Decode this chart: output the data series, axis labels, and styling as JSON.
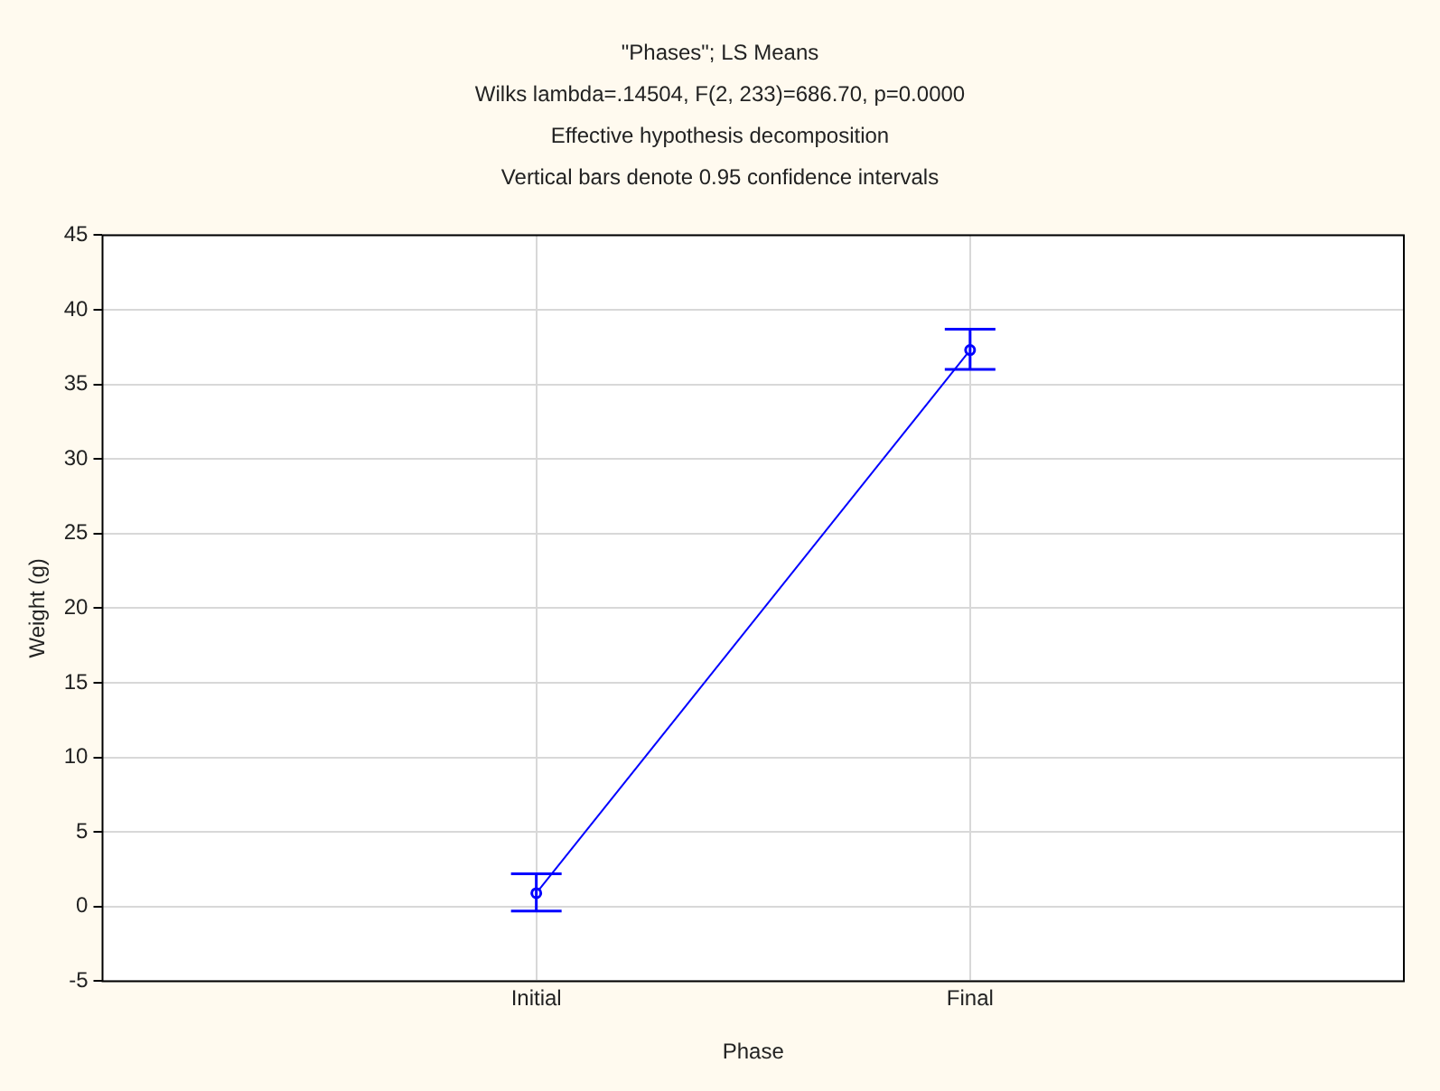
{
  "chart_data": {
    "type": "line",
    "title": "\"Phases\"; LS Means",
    "subtitle": "Wilks lambda=.14504, F(2, 233)=686.70, p=0.0000",
    "annotations": [
      "Effective hypothesis decomposition",
      "Vertical bars denote 0.95 confidence intervals"
    ],
    "xlabel": "Phase",
    "ylabel": "Weight (g)",
    "categories": [
      "Initial",
      "Final"
    ],
    "series": [
      {
        "color": "#0000ff",
        "values": [
          0.9,
          37.3
        ],
        "errors": [
          [
            -0.3,
            2.2
          ],
          [
            36.0,
            38.7
          ]
        ]
      }
    ],
    "ylim": [
      -5,
      45
    ],
    "yticks": [
      -5,
      0,
      5,
      10,
      15,
      20,
      25,
      30,
      35,
      40,
      45
    ],
    "grid": true,
    "legend": false,
    "marker": "circle",
    "line_style": "solid"
  }
}
